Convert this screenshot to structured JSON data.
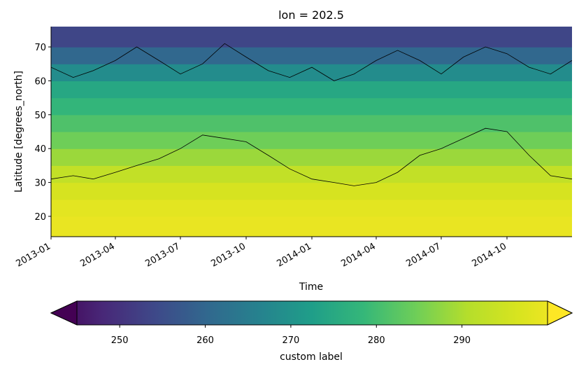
{
  "chart_data": {
    "type": "heatmap",
    "title": "lon = 202.5",
    "xlabel": "Time",
    "ylabel": "Latitude [degrees_north]",
    "x_ticks": [
      "2013-01",
      "2013-04",
      "2013-07",
      "2013-10",
      "2014-01",
      "2014-04",
      "2014-07",
      "2014-10"
    ],
    "y_ticks": [
      20,
      30,
      40,
      50,
      60,
      70
    ],
    "xlim": [
      "2013-01-01",
      "2014-12-31"
    ],
    "ylim": [
      14,
      76
    ],
    "colormap": "viridis",
    "colorbar": {
      "label": "custom label",
      "ticks": [
        250,
        260,
        270,
        280,
        290
      ],
      "range": [
        245,
        300
      ],
      "extend": "both",
      "orientation": "horizontal",
      "placement": "bottom"
    },
    "contours": [
      {
        "level": "upper",
        "points": [
          [
            "2013-01-01",
            64
          ],
          [
            "2013-02-01",
            61
          ],
          [
            "2013-03-01",
            63
          ],
          [
            "2013-04-01",
            66
          ],
          [
            "2013-05-01",
            70
          ],
          [
            "2013-06-01",
            66
          ],
          [
            "2013-07-01",
            62
          ],
          [
            "2013-08-01",
            65
          ],
          [
            "2013-09-01",
            71
          ],
          [
            "2013-10-01",
            67
          ],
          [
            "2013-11-01",
            63
          ],
          [
            "2013-12-01",
            61
          ],
          [
            "2014-01-01",
            64
          ],
          [
            "2014-02-01",
            60
          ],
          [
            "2014-03-01",
            62
          ],
          [
            "2014-04-01",
            66
          ],
          [
            "2014-05-01",
            69
          ],
          [
            "2014-06-01",
            66
          ],
          [
            "2014-07-01",
            62
          ],
          [
            "2014-08-01",
            67
          ],
          [
            "2014-09-01",
            70
          ],
          [
            "2014-10-01",
            68
          ],
          [
            "2014-11-01",
            64
          ],
          [
            "2014-12-01",
            62
          ],
          [
            "2014-12-31",
            66
          ]
        ]
      },
      {
        "level": "lower",
        "points": [
          [
            "2013-01-01",
            31
          ],
          [
            "2013-02-01",
            32
          ],
          [
            "2013-03-01",
            31
          ],
          [
            "2013-04-01",
            33
          ],
          [
            "2013-05-01",
            35
          ],
          [
            "2013-06-01",
            37
          ],
          [
            "2013-07-01",
            40
          ],
          [
            "2013-08-01",
            44
          ],
          [
            "2013-09-01",
            43
          ],
          [
            "2013-10-01",
            42
          ],
          [
            "2013-11-01",
            38
          ],
          [
            "2013-12-01",
            34
          ],
          [
            "2014-01-01",
            31
          ],
          [
            "2014-02-01",
            30
          ],
          [
            "2014-03-01",
            29
          ],
          [
            "2014-04-01",
            30
          ],
          [
            "2014-05-01",
            33
          ],
          [
            "2014-06-01",
            38
          ],
          [
            "2014-07-01",
            40
          ],
          [
            "2014-08-01",
            43
          ],
          [
            "2014-09-01",
            46
          ],
          [
            "2014-10-01",
            45
          ],
          [
            "2014-11-01",
            38
          ],
          [
            "2014-12-01",
            32
          ],
          [
            "2014-12-31",
            31
          ]
        ]
      }
    ],
    "field_profile": [
      {
        "lat": 14,
        "value": 297
      },
      {
        "lat": 20,
        "value": 297
      },
      {
        "lat": 25,
        "value": 295
      },
      {
        "lat": 30,
        "value": 293
      },
      {
        "lat": 35,
        "value": 289
      },
      {
        "lat": 40,
        "value": 285
      },
      {
        "lat": 45,
        "value": 282
      },
      {
        "lat": 50,
        "value": 279
      },
      {
        "lat": 55,
        "value": 276
      },
      {
        "lat": 60,
        "value": 273
      },
      {
        "lat": 65,
        "value": 265
      },
      {
        "lat": 70,
        "value": 258
      },
      {
        "lat": 76,
        "value": 253
      }
    ]
  }
}
